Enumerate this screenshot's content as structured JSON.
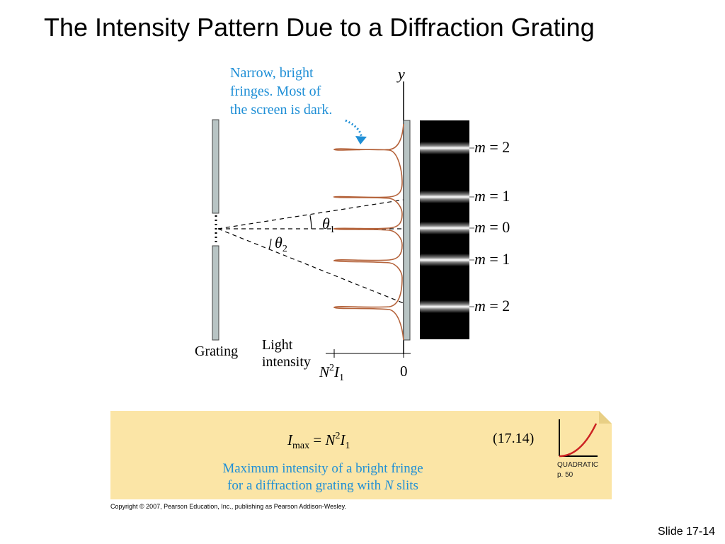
{
  "slide": {
    "title": "The Intensity Pattern Due to a Diffraction Grating",
    "slide_number": "Slide 17-14",
    "copyright": "Copyright © 2007, Pearson Education, Inc., publishing as Pearson Addison-Wesley."
  },
  "figure": {
    "callout": [
      "Narrow, bright",
      "fringes. Most of",
      "the screen is dark."
    ],
    "y_axis": "y",
    "grating_label": "Grating",
    "light_intensity": [
      "Light",
      "intensity"
    ],
    "intensity_axis": {
      "max_label_base": "N",
      "max_label_sup": "2",
      "max_label_I": "I",
      "max_label_sub": "1",
      "zero_label": "0"
    },
    "angles": {
      "theta1": {
        "symbol": "θ",
        "sub": "1"
      },
      "theta2": {
        "symbol": "θ",
        "sub": "2"
      }
    },
    "fringe_orders": [
      {
        "m": "m",
        "eq": "= 2"
      },
      {
        "m": "m",
        "eq": "= 1"
      },
      {
        "m": "m",
        "eq": "= 0"
      },
      {
        "m": "m",
        "eq": "= 1"
      },
      {
        "m": "m",
        "eq": "= 2"
      }
    ],
    "colors": {
      "callout": "#1f8fd6",
      "intensity_curve": "#b5643c",
      "grating": "#b8c4c4",
      "screen": "#000000"
    }
  },
  "equation_box": {
    "lhs_I": "I",
    "lhs_sub": "max",
    "equals": "=",
    "rhs_N": "N",
    "rhs_sup": "2",
    "rhs_I": "I",
    "rhs_sub": "1",
    "number": "(17.14)",
    "description": [
      "Maximum intensity of a bright fringe",
      "for a diffraction grating with",
      "N",
      "slits"
    ],
    "relation_label": [
      "QUADRATIC",
      "p. 50"
    ],
    "colors": {
      "background": "#fbe5a6",
      "description": "#1f8fd6",
      "curve": "#cc2222"
    }
  }
}
